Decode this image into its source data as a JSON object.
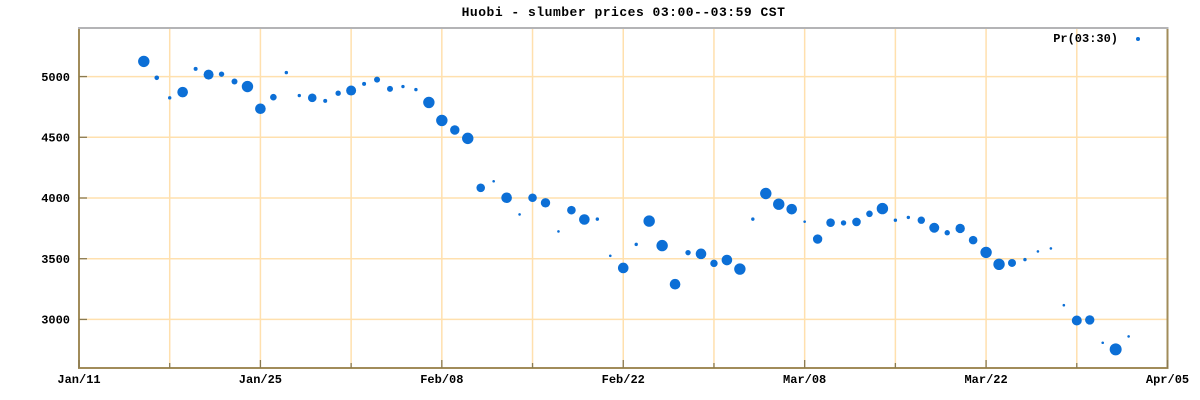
{
  "chart_data": {
    "type": "scatter",
    "title": "Huobi - slumber prices 03:00--03:59 CST",
    "grid": true,
    "legend_position": "top-right-inside",
    "x_tick_labels": [
      "Jan/11",
      "Jan/25",
      "Feb/08",
      "Feb/22",
      "Mar/08",
      "Mar/22",
      "Apr/05"
    ],
    "x_axis_days_range": [
      0,
      84
    ],
    "x_major_tick_days": 14,
    "x_minor_tick_days": 7,
    "ylim": [
      2600,
      5400
    ],
    "y_ticks": [
      3000,
      3500,
      4000,
      4500,
      5000
    ],
    "series": [
      {
        "name": "Pr(03:30)",
        "marker": "filled-circle-variable-size",
        "points": [
          {
            "date": "Jan/16",
            "day": 5,
            "price": 5125,
            "r": 5.7
          },
          {
            "date": "Jan/17",
            "day": 6,
            "price": 4990,
            "r": 2.3
          },
          {
            "date": "Jan/18",
            "day": 7,
            "price": 4825,
            "r": 1.7
          },
          {
            "date": "Jan/19",
            "day": 8,
            "price": 4872,
            "r": 5.3
          },
          {
            "date": "Jan/20",
            "day": 9,
            "price": 5063,
            "r": 2.0
          },
          {
            "date": "Jan/21",
            "day": 10,
            "price": 5016,
            "r": 5.0
          },
          {
            "date": "Jan/22",
            "day": 11,
            "price": 5020,
            "r": 2.7
          },
          {
            "date": "Jan/23",
            "day": 12,
            "price": 4959,
            "r": 3.0
          },
          {
            "date": "Jan/24",
            "day": 13,
            "price": 4918,
            "r": 5.7
          },
          {
            "date": "Jan/25",
            "day": 14,
            "price": 4735,
            "r": 5.3
          },
          {
            "date": "Jan/26",
            "day": 15,
            "price": 4830,
            "r": 3.3
          },
          {
            "date": "Jan/27",
            "day": 16,
            "price": 5033,
            "r": 1.7
          },
          {
            "date": "Jan/28",
            "day": 17,
            "price": 4844,
            "r": 1.7
          },
          {
            "date": "Jan/29",
            "day": 18,
            "price": 4825,
            "r": 4.3
          },
          {
            "date": "Jan/30",
            "day": 19,
            "price": 4800,
            "r": 2.0
          },
          {
            "date": "Jan/31",
            "day": 20,
            "price": 4863,
            "r": 2.7
          },
          {
            "date": "Feb/01",
            "day": 21,
            "price": 4885,
            "r": 5.0
          },
          {
            "date": "Feb/02",
            "day": 22,
            "price": 4940,
            "r": 2.0
          },
          {
            "date": "Feb/03",
            "day": 23,
            "price": 4975,
            "r": 3.0
          },
          {
            "date": "Feb/04",
            "day": 24,
            "price": 4899,
            "r": 3.0
          },
          {
            "date": "Feb/05",
            "day": 25,
            "price": 4918,
            "r": 1.7
          },
          {
            "date": "Feb/06",
            "day": 26,
            "price": 4893,
            "r": 1.7
          },
          {
            "date": "Feb/07",
            "day": 27,
            "price": 4787,
            "r": 5.7
          },
          {
            "date": "Feb/08",
            "day": 28,
            "price": 4639,
            "r": 5.7
          },
          {
            "date": "Feb/09",
            "day": 29,
            "price": 4560,
            "r": 4.7
          },
          {
            "date": "Feb/10",
            "day": 30,
            "price": 4491,
            "r": 5.7
          },
          {
            "date": "Feb/11",
            "day": 31,
            "price": 4084,
            "r": 4.3
          },
          {
            "date": "Feb/12",
            "day": 32,
            "price": 4138,
            "r": 1.3
          },
          {
            "date": "Feb/13",
            "day": 33,
            "price": 4002,
            "r": 5.3
          },
          {
            "date": "Feb/14",
            "day": 34,
            "price": 3865,
            "r": 1.3
          },
          {
            "date": "Feb/15",
            "day": 35,
            "price": 4002,
            "r": 4.3
          },
          {
            "date": "Feb/16",
            "day": 36,
            "price": 3960,
            "r": 4.7
          },
          {
            "date": "Feb/17",
            "day": 37,
            "price": 3725,
            "r": 1.3
          },
          {
            "date": "Feb/18",
            "day": 38,
            "price": 3900,
            "r": 4.3
          },
          {
            "date": "Feb/19",
            "day": 39,
            "price": 3823,
            "r": 5.3
          },
          {
            "date": "Feb/20",
            "day": 40,
            "price": 3826,
            "r": 1.7
          },
          {
            "date": "Feb/21",
            "day": 41,
            "price": 3524,
            "r": 1.3
          },
          {
            "date": "Feb/22",
            "day": 42,
            "price": 3424,
            "r": 5.3
          },
          {
            "date": "Feb/23",
            "day": 43,
            "price": 3618,
            "r": 1.7
          },
          {
            "date": "Feb/24",
            "day": 44,
            "price": 3810,
            "r": 5.7
          },
          {
            "date": "Feb/25",
            "day": 45,
            "price": 3608,
            "r": 5.7
          },
          {
            "date": "Feb/26",
            "day": 46,
            "price": 3290,
            "r": 5.3
          },
          {
            "date": "Feb/27",
            "day": 47,
            "price": 3550,
            "r": 2.7
          },
          {
            "date": "Feb/28",
            "day": 48,
            "price": 3540,
            "r": 5.3
          },
          {
            "date": "Mar/01",
            "day": 49,
            "price": 3462,
            "r": 3.7
          },
          {
            "date": "Mar/02",
            "day": 50,
            "price": 3489,
            "r": 5.3
          },
          {
            "date": "Mar/03",
            "day": 51,
            "price": 3415,
            "r": 5.7
          },
          {
            "date": "Mar/04",
            "day": 52,
            "price": 3826,
            "r": 1.7
          },
          {
            "date": "Mar/05",
            "day": 53,
            "price": 4037,
            "r": 5.7
          },
          {
            "date": "Mar/06",
            "day": 54,
            "price": 3949,
            "r": 5.7
          },
          {
            "date": "Mar/07",
            "day": 55,
            "price": 3908,
            "r": 5.3
          },
          {
            "date": "Mar/08",
            "day": 56,
            "price": 3805,
            "r": 1.3
          },
          {
            "date": "Mar/09",
            "day": 57,
            "price": 3662,
            "r": 4.7
          },
          {
            "date": "Mar/10",
            "day": 58,
            "price": 3797,
            "r": 4.3
          },
          {
            "date": "Mar/11",
            "day": 59,
            "price": 3795,
            "r": 2.7
          },
          {
            "date": "Mar/12",
            "day": 60,
            "price": 3803,
            "r": 4.3
          },
          {
            "date": "Mar/13",
            "day": 61,
            "price": 3870,
            "r": 3.3
          },
          {
            "date": "Mar/14",
            "day": 62,
            "price": 3913,
            "r": 5.7
          },
          {
            "date": "Mar/15",
            "day": 63,
            "price": 3817,
            "r": 1.7
          },
          {
            "date": "Mar/16",
            "day": 64,
            "price": 3840,
            "r": 1.7
          },
          {
            "date": "Mar/17",
            "day": 65,
            "price": 3817,
            "r": 3.7
          },
          {
            "date": "Mar/18",
            "day": 66,
            "price": 3755,
            "r": 5.0
          },
          {
            "date": "Mar/19",
            "day": 67,
            "price": 3714,
            "r": 2.7
          },
          {
            "date": "Mar/20",
            "day": 68,
            "price": 3749,
            "r": 4.7
          },
          {
            "date": "Mar/21",
            "day": 69,
            "price": 3653,
            "r": 4.3
          },
          {
            "date": "Mar/22",
            "day": 70,
            "price": 3552,
            "r": 5.7
          },
          {
            "date": "Mar/23",
            "day": 71,
            "price": 3454,
            "r": 5.7
          },
          {
            "date": "Mar/24",
            "day": 72,
            "price": 3465,
            "r": 4.0
          },
          {
            "date": "Mar/25",
            "day": 73,
            "price": 3493,
            "r": 1.7
          },
          {
            "date": "Mar/26",
            "day": 74,
            "price": 3560,
            "r": 1.3
          },
          {
            "date": "Mar/27",
            "day": 75,
            "price": 3585,
            "r": 1.3
          },
          {
            "date": "Mar/28",
            "day": 76,
            "price": 3117,
            "r": 1.3
          },
          {
            "date": "Mar/29",
            "day": 77,
            "price": 2991,
            "r": 5.0
          },
          {
            "date": "Mar/30",
            "day": 78,
            "price": 2996,
            "r": 4.7
          },
          {
            "date": "Mar/31",
            "day": 79,
            "price": 2808,
            "r": 1.3
          },
          {
            "date": "Apr/01",
            "day": 80,
            "price": 2753,
            "r": 6.0
          },
          {
            "date": "Apr/02",
            "day": 81,
            "price": 2860,
            "r": 1.3
          }
        ]
      }
    ]
  },
  "colors": {
    "marker": "#0c6fd6",
    "gridline": "#ffe0ae",
    "frame": "#a18c5a",
    "frame_top": "#b4b4b6",
    "tick": "#8a7a50",
    "text": "#000000",
    "background": "#ffffff"
  }
}
